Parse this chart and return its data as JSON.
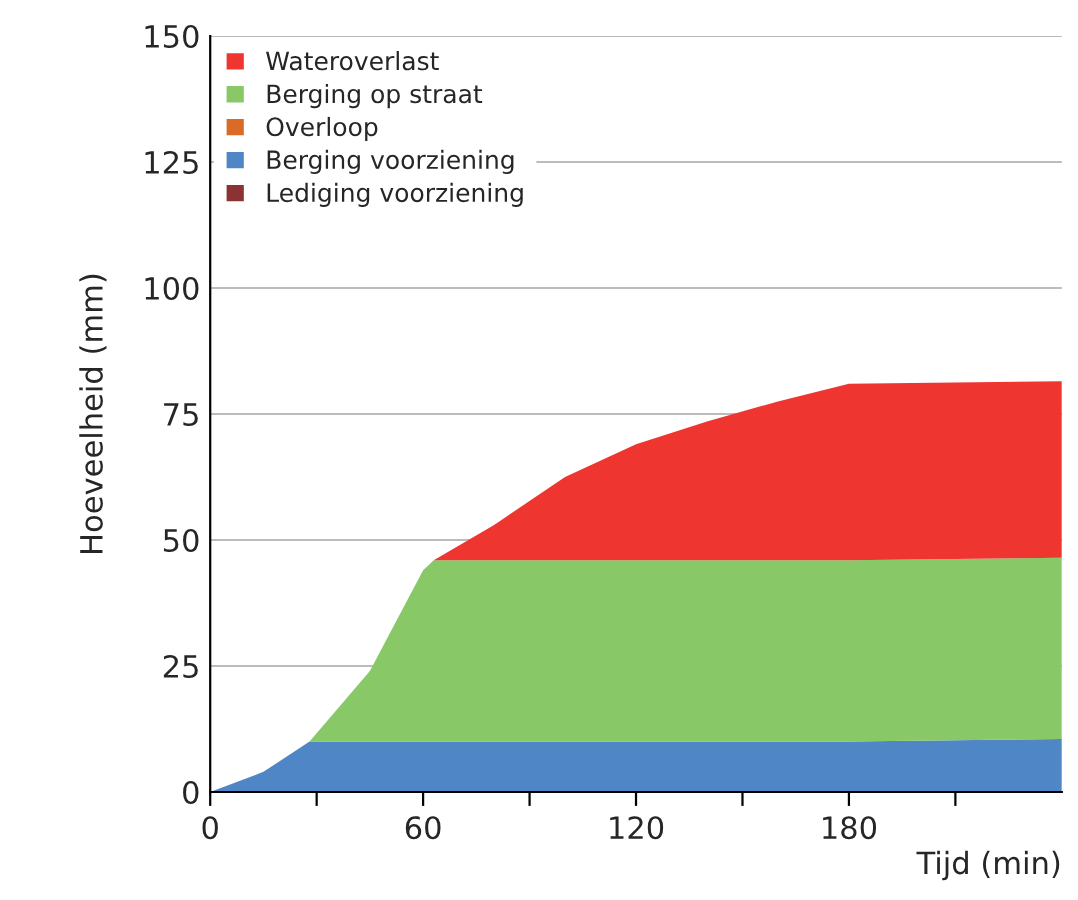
{
  "chart_data": {
    "type": "area",
    "stacked": true,
    "xlabel": "Tijd (min)",
    "ylabel": "Hoeveelheid (mm)",
    "x": [
      0,
      15,
      28,
      45,
      60,
      63,
      80,
      100,
      120,
      140,
      160,
      180,
      240
    ],
    "series": [
      {
        "name": "Lediging voorziening",
        "color": "#8b3233",
        "values": [
          null,
          null,
          null,
          null,
          null,
          null,
          null,
          null,
          null,
          null,
          null,
          null,
          null
        ]
      },
      {
        "name": "Berging voorziening",
        "color": "#4f86c6",
        "values": [
          0,
          4,
          10,
          10,
          10,
          10,
          10,
          10,
          10,
          10,
          10,
          10,
          10.5
        ]
      },
      {
        "name": "Overloop",
        "color": "#d96b27",
        "values": [
          null,
          null,
          null,
          null,
          null,
          null,
          null,
          null,
          null,
          null,
          null,
          null,
          null
        ]
      },
      {
        "name": "Berging op straat",
        "color": "#88c866",
        "values": [
          0,
          0,
          0,
          14,
          34,
          36,
          36,
          36,
          36,
          36,
          36,
          36,
          36
        ]
      },
      {
        "name": "Wateroverlast",
        "color": "#ee3530",
        "values": [
          0,
          0,
          0,
          0,
          0,
          0,
          7,
          16.5,
          23,
          27.5,
          31.5,
          35,
          35
        ]
      }
    ],
    "xlim": [
      0,
      240
    ],
    "xticks": [
      0,
      {
        "value": 30,
        "label": null
      },
      60,
      {
        "value": 90,
        "label": null
      },
      120,
      {
        "value": 150,
        "label": null
      },
      180,
      {
        "value": 210,
        "label": null
      }
    ],
    "ylim": [
      0,
      150
    ],
    "yticks": [
      0,
      25,
      50,
      75,
      100,
      125,
      150
    ],
    "grid": "y",
    "legend": "top left"
  }
}
